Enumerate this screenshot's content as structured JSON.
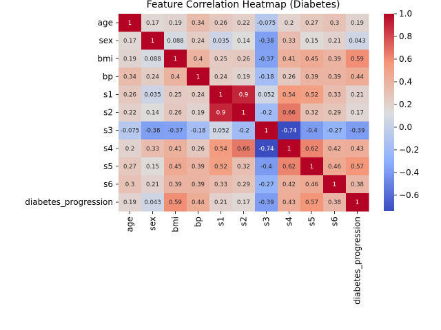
{
  "chart_data": {
    "type": "heatmap",
    "title": "Feature Correlation Heatmap (Diabetes)",
    "colormap": "coolwarm",
    "rows": [
      "age",
      "sex",
      "bmi",
      "bp",
      "s1",
      "s2",
      "s3",
      "s4",
      "s5",
      "s6",
      "diabetes_progression"
    ],
    "columns": [
      "age",
      "sex",
      "bmi",
      "bp",
      "s1",
      "s2",
      "s3",
      "s4",
      "s5",
      "s6",
      "diabetes_progression"
    ],
    "values": [
      [
        1,
        0.17,
        0.19,
        0.34,
        0.26,
        0.22,
        -0.075,
        0.2,
        0.27,
        0.3,
        0.19
      ],
      [
        0.17,
        1,
        0.088,
        0.24,
        0.035,
        0.14,
        -0.38,
        0.33,
        0.15,
        0.21,
        0.043
      ],
      [
        0.19,
        0.088,
        1,
        0.4,
        0.25,
        0.26,
        -0.37,
        0.41,
        0.45,
        0.39,
        0.59
      ],
      [
        0.34,
        0.24,
        0.4,
        1,
        0.24,
        0.19,
        -0.18,
        0.26,
        0.39,
        0.39,
        0.44
      ],
      [
        0.26,
        0.035,
        0.25,
        0.24,
        1,
        0.9,
        0.052,
        0.54,
        0.52,
        0.33,
        0.21
      ],
      [
        0.22,
        0.14,
        0.26,
        0.19,
        0.9,
        1,
        -0.2,
        0.66,
        0.32,
        0.29,
        0.17
      ],
      [
        -0.075,
        -0.38,
        -0.37,
        -0.18,
        0.052,
        -0.2,
        1,
        -0.74,
        -0.4,
        -0.27,
        -0.39
      ],
      [
        0.2,
        0.33,
        0.41,
        0.26,
        0.54,
        0.66,
        -0.74,
        1,
        0.62,
        0.42,
        0.43
      ],
      [
        0.27,
        0.15,
        0.45,
        0.39,
        0.52,
        0.32,
        -0.4,
        0.62,
        1,
        0.46,
        0.57
      ],
      [
        0.3,
        0.21,
        0.39,
        0.39,
        0.33,
        0.29,
        -0.27,
        0.42,
        0.46,
        1,
        0.38
      ],
      [
        0.19,
        0.043,
        0.59,
        0.44,
        0.21,
        0.17,
        -0.39,
        0.43,
        0.57,
        0.38,
        1
      ]
    ],
    "color_range": [
      -0.74,
      1
    ],
    "colorbar_ticks": [
      "1.0",
      "0.8",
      "0.6",
      "0.4",
      "0.2",
      "0.0",
      "−0.2",
      "−0.4",
      "−0.6"
    ],
    "colorbar_tick_values": [
      1.0,
      0.8,
      0.6,
      0.4,
      0.2,
      0.0,
      -0.2,
      -0.4,
      -0.6
    ]
  }
}
